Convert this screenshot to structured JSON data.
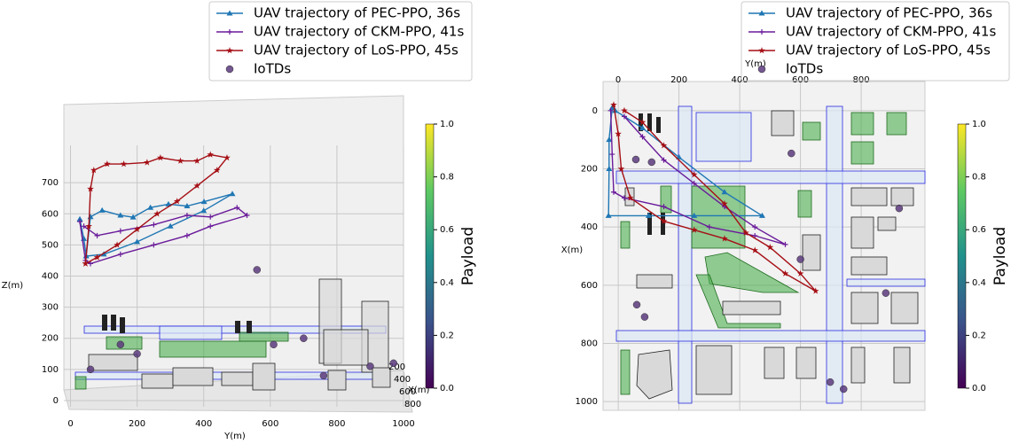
{
  "chart_data": [
    {
      "type": "trajectory",
      "xlabel": "Y(m)",
      "ylabel": "Z(m)",
      "depth_label": "X(m)",
      "xlim": [
        -20,
        1000
      ],
      "ylim": [
        -20,
        820
      ],
      "xticks": [
        0,
        200,
        400,
        600,
        800,
        1000
      ],
      "yticks": [
        0,
        100,
        200,
        300,
        400,
        500,
        600,
        700
      ],
      "depth_ticks": [
        200,
        400,
        600,
        800
      ],
      "grid": true,
      "series": [
        {
          "name": "UAV trajectory of PEC-PPO, 36s",
          "color": "#1f77b4",
          "marker": "triangle",
          "x": [
            28,
            40,
            47,
            60,
            95,
            150,
            188,
            240,
            294,
            350,
            401,
            486,
            400,
            300,
            200,
            100,
            47
          ],
          "values": [
            583,
            520,
            464,
            590,
            611,
            595,
            589,
            620,
            631,
            625,
            639,
            664,
            610,
            560,
            510,
            470,
            464
          ]
        },
        {
          "name": "UAV trajectory of CKM-PPO, 41s",
          "color": "#6a1b9a",
          "marker": "plus",
          "x": [
            28,
            45,
            60,
            150,
            250,
            350,
            420,
            530,
            500,
            420,
            350,
            250,
            150,
            80,
            40
          ],
          "values": [
            575,
            450,
            440,
            470,
            500,
            530,
            560,
            595,
            620,
            590,
            595,
            565,
            545,
            530,
            560
          ]
        },
        {
          "name": "UAV trajectory of LoS-PPO, 45s",
          "color": "#a50f15",
          "marker": "star",
          "x": [
            45,
            55,
            60,
            70,
            110,
            160,
            230,
            270,
            330,
            380,
            420,
            470,
            440,
            380,
            320,
            260,
            200,
            140,
            80,
            45
          ],
          "values": [
            440,
            560,
            680,
            740,
            760,
            760,
            765,
            780,
            770,
            770,
            790,
            780,
            740,
            690,
            640,
            600,
            550,
            500,
            460,
            440
          ]
        },
        {
          "name": "IoTDs",
          "color": "#5b3a7d",
          "marker": "circle",
          "x": [
            60,
            150,
            200,
            560,
            610,
            700,
            760,
            900,
            970
          ],
          "values": [
            100,
            180,
            150,
            420,
            180,
            200,
            80,
            110,
            120
          ]
        }
      ],
      "colorbar": {
        "label": "Payload",
        "lim": [
          0,
          1
        ],
        "ticks": [
          {
            "value": 0,
            "label": "0.0"
          },
          0.2,
          0.4,
          0.6,
          0.8,
          {
            "value": 1,
            "label": "1.0"
          }
        ]
      }
    },
    {
      "type": "trajectory",
      "xlabel": "Y(m)",
      "ylabel": "X(m)",
      "xlim": [
        -50,
        1010
      ],
      "ylim": [
        -100,
        1030
      ],
      "y_inverted": true,
      "xticks": [
        0,
        200,
        400,
        600,
        800
      ],
      "yticks": [
        0,
        200,
        400,
        600,
        800,
        1000
      ],
      "grid": true,
      "series": [
        {
          "name": "UAV trajectory of PEC-PPO, 36s",
          "color": "#1f77b4",
          "marker": "triangle",
          "x": [
            -20,
            -30,
            -30,
            -32,
            100,
            250,
            474,
            350,
            200,
            80,
            -10
          ],
          "values": [
            -10,
            100,
            200,
            361,
            361,
            361,
            361,
            280,
            160,
            60,
            0
          ]
        },
        {
          "name": "UAV trajectory of CKM-PPO, 41s",
          "color": "#6a1b9a",
          "marker": "plus",
          "x": [
            -25,
            -20,
            -15,
            20,
            150,
            300,
            450,
            550,
            450,
            350,
            250,
            150,
            80,
            20
          ],
          "values": [
            0,
            150,
            280,
            300,
            330,
            400,
            430,
            460,
            400,
            330,
            250,
            170,
            90,
            20
          ]
        },
        {
          "name": "UAV trajectory of LoS-PPO, 45s",
          "color": "#a50f15",
          "marker": "star",
          "x": [
            -15,
            0,
            10,
            40,
            150,
            250,
            350,
            450,
            550,
            650,
            600,
            500,
            420,
            350,
            250,
            150,
            80,
            20
          ],
          "values": [
            -20,
            80,
            200,
            300,
            380,
            410,
            440,
            480,
            560,
            620,
            560,
            470,
            420,
            320,
            220,
            120,
            40,
            0
          ]
        },
        {
          "name": "IoTDs",
          "color": "#5b3a7d",
          "marker": "circle",
          "x": [
            58,
            110,
            925,
            600,
            881,
            61,
            87,
            698,
            742,
            570
          ],
          "values": [
            168,
            177,
            336,
            511,
            627,
            667,
            709,
            933,
            957,
            147
          ]
        }
      ],
      "colorbar": {
        "label": "Payload",
        "lim": [
          0,
          1
        ],
        "ticks": [
          {
            "value": 0,
            "label": "0.0"
          },
          0.2,
          0.4,
          0.6,
          0.8,
          {
            "value": 1,
            "label": "1.0"
          }
        ]
      }
    }
  ]
}
